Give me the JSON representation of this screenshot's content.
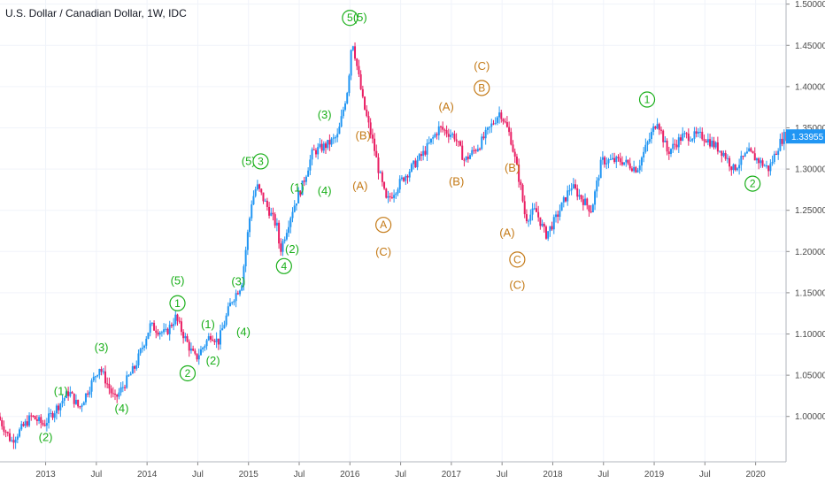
{
  "chart_data": {
    "type": "candlestick",
    "title": "U.S. Dollar / Canadian Dollar, 1W, IDC",
    "colors": {
      "up": "#2196f3",
      "down": "#e91e63",
      "green_label": "#1aaf1a",
      "orange_label": "#c47a17",
      "grid": "#f0f3fa",
      "axis_text": "#4a4a4a",
      "price_tag": "#2196f3"
    },
    "y_axis": {
      "range": [
        0.945,
        1.505
      ],
      "ticks": [
        "1.00000",
        "1.05000",
        "1.10000",
        "1.15000",
        "1.20000",
        "1.25000",
        "1.30000",
        "1.35000",
        "1.40000",
        "1.45000",
        "1.50000"
      ],
      "tick_values": [
        1.0,
        1.05,
        1.1,
        1.15,
        1.2,
        1.25,
        1.3,
        1.35,
        1.4,
        1.45,
        1.5
      ]
    },
    "x_axis": {
      "range": [
        2012.55,
        2020.3
      ],
      "tick_labels": [
        "2013",
        "Jul",
        "2014",
        "Jul",
        "2015",
        "Jul",
        "2016",
        "Jul",
        "2017",
        "Jul",
        "2018",
        "Jul",
        "2019",
        "Jul",
        "2020"
      ],
      "tick_values": [
        2013.0,
        2013.5,
        2014.0,
        2014.5,
        2015.0,
        2015.5,
        2016.0,
        2016.5,
        2017.0,
        2017.5,
        2018.0,
        2018.5,
        2019.0,
        2019.5,
        2020.0
      ]
    },
    "last_price": {
      "label": "1.33955",
      "value": 1.33955
    },
    "price_path": [
      [
        2012.55,
        1.0
      ],
      [
        2012.68,
        0.97
      ],
      [
        2012.88,
        1.0
      ],
      [
        2013.0,
        0.99
      ],
      [
        2013.25,
        1.03
      ],
      [
        2013.35,
        1.01
      ],
      [
        2013.55,
        1.06
      ],
      [
        2013.7,
        1.02
      ],
      [
        2013.9,
        1.06
      ],
      [
        2014.05,
        1.11
      ],
      [
        2014.2,
        1.1
      ],
      [
        2014.3,
        1.12
      ],
      [
        2014.45,
        1.08
      ],
      [
        2014.5,
        1.07
      ],
      [
        2014.65,
        1.1
      ],
      [
        2014.72,
        1.09
      ],
      [
        2014.85,
        1.14
      ],
      [
        2014.95,
        1.16
      ],
      [
        2015.05,
        1.26
      ],
      [
        2015.1,
        1.28
      ],
      [
        2015.3,
        1.23
      ],
      [
        2015.33,
        1.2
      ],
      [
        2015.45,
        1.25
      ],
      [
        2015.55,
        1.28
      ],
      [
        2015.65,
        1.32
      ],
      [
        2015.8,
        1.33
      ],
      [
        2015.9,
        1.34
      ],
      [
        2016.0,
        1.4
      ],
      [
        2016.04,
        1.46
      ],
      [
        2016.15,
        1.38
      ],
      [
        2016.25,
        1.33
      ],
      [
        2016.3,
        1.3
      ],
      [
        2016.38,
        1.26
      ],
      [
        2016.55,
        1.29
      ],
      [
        2016.75,
        1.32
      ],
      [
        2016.9,
        1.35
      ],
      [
        2017.05,
        1.34
      ],
      [
        2017.15,
        1.31
      ],
      [
        2017.3,
        1.33
      ],
      [
        2017.4,
        1.35
      ],
      [
        2017.5,
        1.37
      ],
      [
        2017.6,
        1.34
      ],
      [
        2017.7,
        1.28
      ],
      [
        2017.75,
        1.24
      ],
      [
        2017.85,
        1.25
      ],
      [
        2017.95,
        1.22
      ],
      [
        2018.05,
        1.24
      ],
      [
        2018.2,
        1.28
      ],
      [
        2018.4,
        1.25
      ],
      [
        2018.5,
        1.31
      ],
      [
        2018.7,
        1.31
      ],
      [
        2018.85,
        1.3
      ],
      [
        2018.95,
        1.33
      ],
      [
        2019.05,
        1.36
      ],
      [
        2019.15,
        1.32
      ],
      [
        2019.3,
        1.34
      ],
      [
        2019.5,
        1.34
      ],
      [
        2019.7,
        1.32
      ],
      [
        2019.8,
        1.3
      ],
      [
        2019.95,
        1.32
      ],
      [
        2020.05,
        1.31
      ],
      [
        2020.15,
        1.3
      ],
      [
        2020.25,
        1.33
      ],
      [
        2020.3,
        1.34
      ]
    ],
    "wave_labels": [
      {
        "text": "(1)",
        "x": 2013.15,
        "y": 1.026,
        "style": "green"
      },
      {
        "text": "(2)",
        "x": 2013.0,
        "y": 0.97,
        "style": "green"
      },
      {
        "text": "(3)",
        "x": 2013.55,
        "y": 1.079,
        "style": "green"
      },
      {
        "text": "(4)",
        "x": 2013.75,
        "y": 1.005,
        "style": "green"
      },
      {
        "text": "(5)",
        "x": 2014.3,
        "y": 1.16,
        "style": "green"
      },
      {
        "text": "1",
        "x": 2014.3,
        "y": 1.133,
        "style": "green-circle"
      },
      {
        "text": "2",
        "x": 2014.4,
        "y": 1.048,
        "style": "green-circle"
      },
      {
        "text": "(1)",
        "x": 2014.6,
        "y": 1.107,
        "style": "green"
      },
      {
        "text": "(2)",
        "x": 2014.65,
        "y": 1.063,
        "style": "green"
      },
      {
        "text": "(3)",
        "x": 2014.9,
        "y": 1.159,
        "style": "green"
      },
      {
        "text": "(4)",
        "x": 2014.95,
        "y": 1.098,
        "style": "green"
      },
      {
        "text": "(5)",
        "x": 2015.0,
        "y": 1.305,
        "style": "green"
      },
      {
        "text": "3",
        "x": 2015.12,
        "y": 1.305,
        "style": "green-circle"
      },
      {
        "text": "4",
        "x": 2015.35,
        "y": 1.178,
        "style": "green-circle"
      },
      {
        "text": "(1)",
        "x": 2015.48,
        "y": 1.273,
        "style": "green"
      },
      {
        "text": "(2)",
        "x": 2015.43,
        "y": 1.198,
        "style": "green"
      },
      {
        "text": "(3)",
        "x": 2015.75,
        "y": 1.361,
        "style": "green"
      },
      {
        "text": "(4)",
        "x": 2015.75,
        "y": 1.269,
        "style": "green"
      },
      {
        "text": "5",
        "x": 2016.0,
        "y": 1.479,
        "style": "green-circle"
      },
      {
        "text": "(5)",
        "x": 2016.1,
        "y": 1.479,
        "style": "green"
      },
      {
        "text": "(B)",
        "x": 2016.13,
        "y": 1.336,
        "style": "orange"
      },
      {
        "text": "(A)",
        "x": 2016.1,
        "y": 1.275,
        "style": "orange"
      },
      {
        "text": "A",
        "x": 2016.33,
        "y": 1.228,
        "style": "orange-circle"
      },
      {
        "text": "(C)",
        "x": 2016.33,
        "y": 1.195,
        "style": "orange"
      },
      {
        "text": "(A)",
        "x": 2016.95,
        "y": 1.371,
        "style": "orange"
      },
      {
        "text": "(B)",
        "x": 2017.05,
        "y": 1.28,
        "style": "orange"
      },
      {
        "text": "(C)",
        "x": 2017.3,
        "y": 1.42,
        "style": "orange"
      },
      {
        "text": "B",
        "x": 2017.3,
        "y": 1.394,
        "style": "orange-circle"
      },
      {
        "text": "(B)",
        "x": 2017.6,
        "y": 1.297,
        "style": "orange"
      },
      {
        "text": "(A)",
        "x": 2017.55,
        "y": 1.218,
        "style": "orange"
      },
      {
        "text": "C",
        "x": 2017.65,
        "y": 1.186,
        "style": "orange-circle"
      },
      {
        "text": "(C)",
        "x": 2017.65,
        "y": 1.155,
        "style": "orange"
      },
      {
        "text": "1",
        "x": 2018.93,
        "y": 1.38,
        "style": "green-circle"
      },
      {
        "text": "2",
        "x": 2019.97,
        "y": 1.278,
        "style": "green-circle"
      }
    ]
  }
}
